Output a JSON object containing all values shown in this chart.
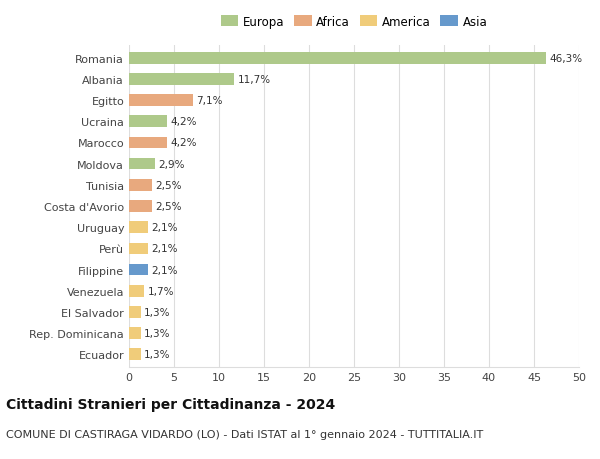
{
  "countries": [
    "Romania",
    "Albania",
    "Egitto",
    "Ucraina",
    "Marocco",
    "Moldova",
    "Tunisia",
    "Costa d'Avorio",
    "Uruguay",
    "Perù",
    "Filippine",
    "Venezuela",
    "El Salvador",
    "Rep. Dominicana",
    "Ecuador"
  ],
  "values": [
    46.3,
    11.7,
    7.1,
    4.2,
    4.2,
    2.9,
    2.5,
    2.5,
    2.1,
    2.1,
    2.1,
    1.7,
    1.3,
    1.3,
    1.3
  ],
  "labels": [
    "46,3%",
    "11,7%",
    "7,1%",
    "4,2%",
    "4,2%",
    "2,9%",
    "2,5%",
    "2,5%",
    "2,1%",
    "2,1%",
    "2,1%",
    "1,7%",
    "1,3%",
    "1,3%",
    "1,3%"
  ],
  "continents": [
    "Europa",
    "Europa",
    "Africa",
    "Europa",
    "Africa",
    "Europa",
    "Africa",
    "Africa",
    "America",
    "America",
    "Asia",
    "America",
    "America",
    "America",
    "America"
  ],
  "continent_colors": {
    "Europa": "#aec98a",
    "Africa": "#e8a97e",
    "America": "#f0cc7a",
    "Asia": "#6699cc"
  },
  "legend_order": [
    "Europa",
    "Africa",
    "America",
    "Asia"
  ],
  "title": "Cittadini Stranieri per Cittadinanza - 2024",
  "subtitle": "COMUNE DI CASTIRAGA VIDARDO (LO) - Dati ISTAT al 1° gennaio 2024 - TUTTITALIA.IT",
  "xlim": [
    0,
    50
  ],
  "xticks": [
    0,
    5,
    10,
    15,
    20,
    25,
    30,
    35,
    40,
    45,
    50
  ],
  "background_color": "#ffffff",
  "grid_color": "#dddddd",
  "bar_height": 0.55,
  "title_fontsize": 10,
  "subtitle_fontsize": 8,
  "label_fontsize": 7.5,
  "tick_fontsize": 8,
  "legend_fontsize": 8.5
}
